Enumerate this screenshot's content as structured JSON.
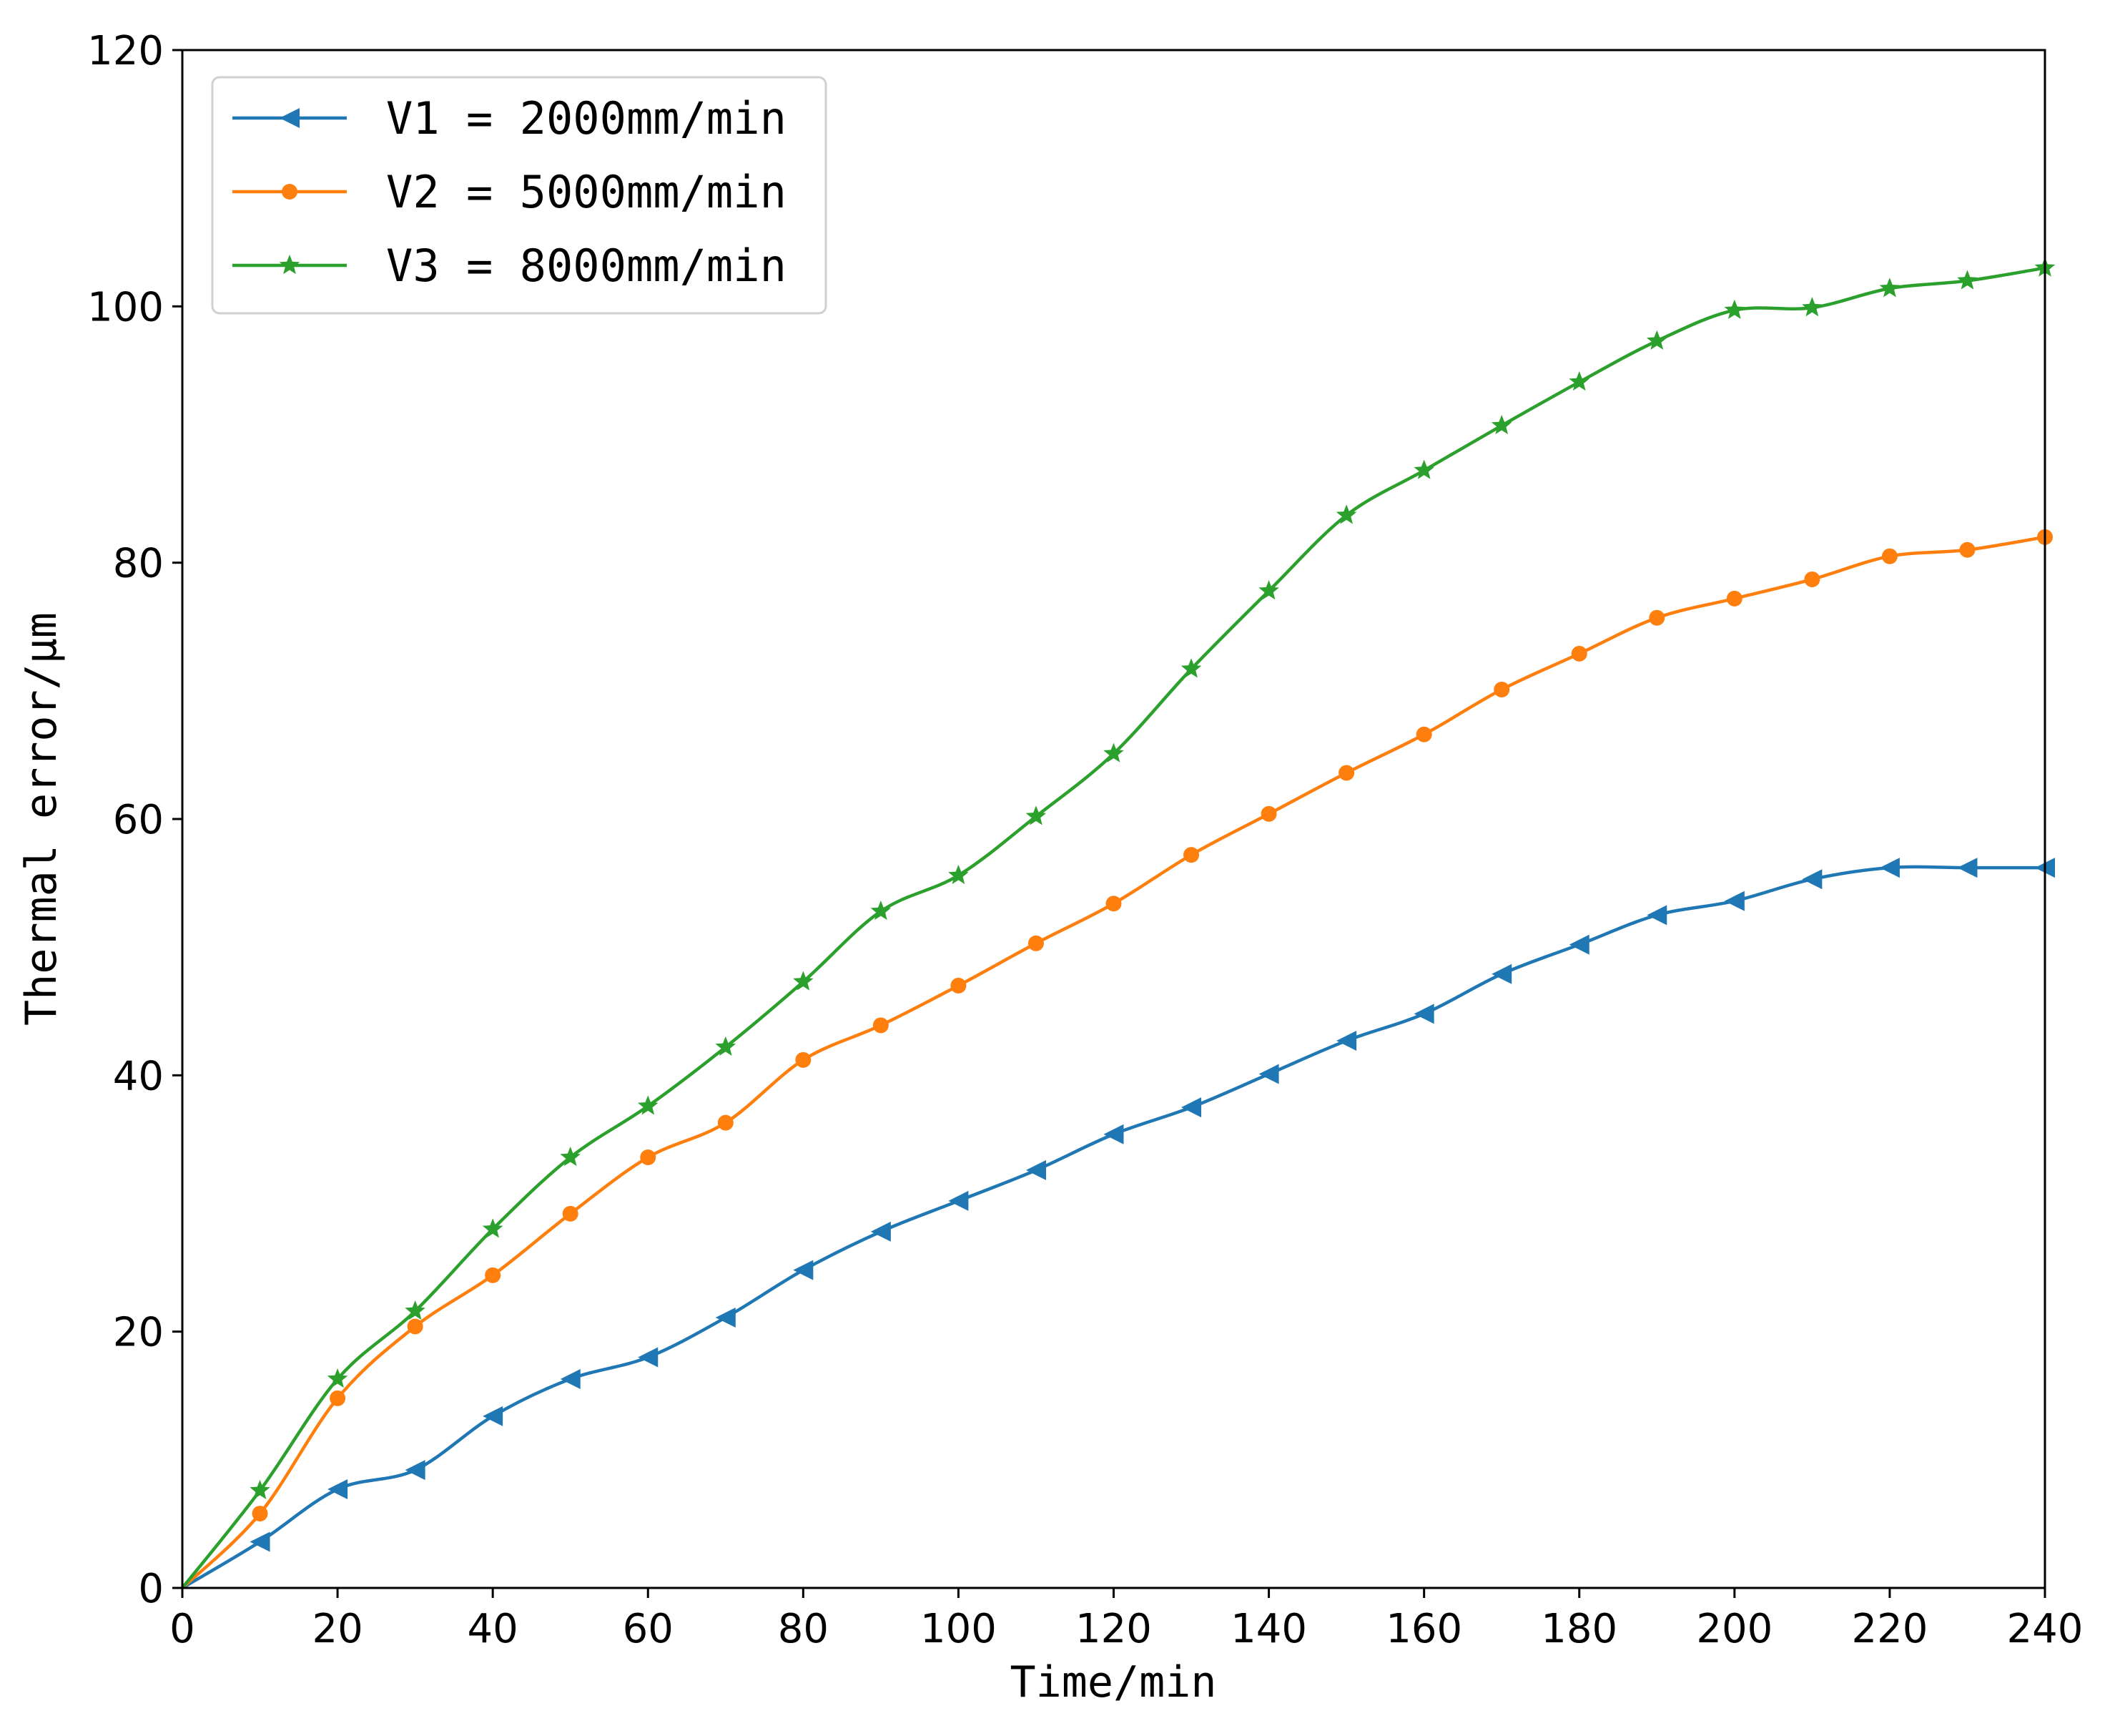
{
  "chart_data": {
    "type": "line",
    "title": "",
    "xlabel": "Time/min",
    "ylabel": "Thermal error/μm",
    "xlim": [
      0,
      240
    ],
    "ylim": [
      0,
      120
    ],
    "xticks": [
      0,
      20,
      40,
      60,
      80,
      100,
      120,
      140,
      160,
      180,
      200,
      220,
      240
    ],
    "yticks": [
      0,
      20,
      40,
      60,
      80,
      100,
      120
    ],
    "grid": false,
    "legend_position": "top-left",
    "x": [
      0,
      10,
      20,
      30,
      40,
      50,
      60,
      70,
      80,
      90,
      100,
      110,
      120,
      130,
      140,
      150,
      160,
      170,
      180,
      190,
      200,
      210,
      220,
      230,
      240
    ],
    "series": [
      {
        "name": "V1 = 2000mm/min",
        "color": "#1f77b4",
        "marker": "triangle-left",
        "values": [
          0,
          3.6,
          7.7,
          9.2,
          13.4,
          16.3,
          18.0,
          21.1,
          24.8,
          27.8,
          30.2,
          32.6,
          35.4,
          37.5,
          40.1,
          42.7,
          44.8,
          47.9,
          50.2,
          52.5,
          53.6,
          55.3,
          56.2,
          56.2,
          56.2
        ]
      },
      {
        "name": "V2 = 5000mm/min",
        "color": "#ff7f0e",
        "marker": "circle",
        "values": [
          0,
          5.8,
          14.8,
          20.4,
          24.4,
          29.2,
          33.6,
          36.3,
          41.2,
          43.9,
          47.0,
          50.3,
          53.4,
          57.2,
          60.4,
          63.6,
          66.6,
          70.1,
          72.9,
          75.7,
          77.2,
          78.7,
          80.5,
          81.0,
          82.0
        ]
      },
      {
        "name": "V3 = 8000mm/min",
        "color": "#2ca02c",
        "marker": "star",
        "values": [
          0,
          7.6,
          16.3,
          21.6,
          28.0,
          33.6,
          37.6,
          42.2,
          47.3,
          52.8,
          55.6,
          60.2,
          65.1,
          71.7,
          77.8,
          83.7,
          87.2,
          90.7,
          94.1,
          97.3,
          99.7,
          99.9,
          101.4,
          102.0,
          103.0
        ]
      }
    ]
  }
}
